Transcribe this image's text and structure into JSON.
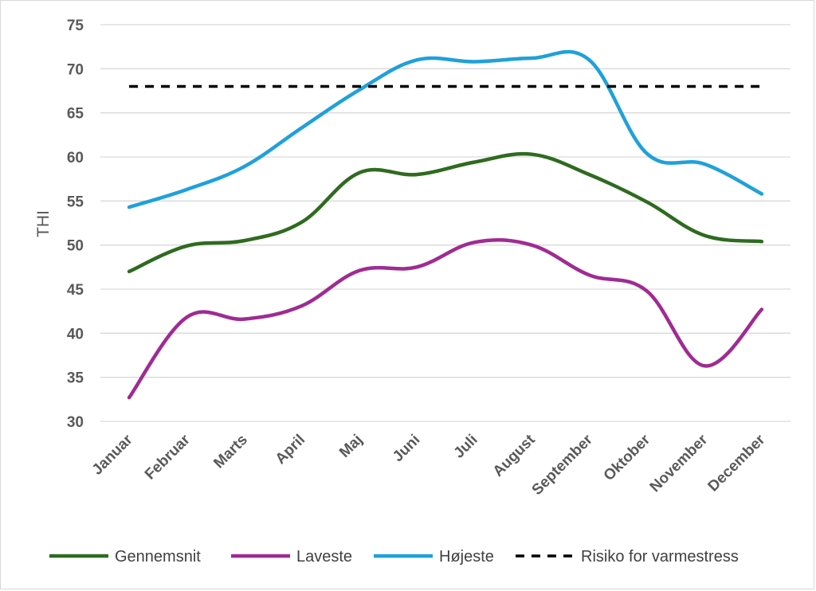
{
  "chart_data": {
    "type": "line",
    "title": "",
    "xlabel": "",
    "ylabel": "THI",
    "ylim": [
      30,
      75
    ],
    "y_ticks": [
      30,
      35,
      40,
      45,
      50,
      55,
      60,
      65,
      70,
      75
    ],
    "grid": "horizontal",
    "legend_position": "bottom",
    "categories": [
      "Januar",
      "Februar",
      "Marts",
      "April",
      "Maj",
      "Juni",
      "Juli",
      "August",
      "September",
      "Oktober",
      "November",
      "December"
    ],
    "series": [
      {
        "name": "Gennemsnit",
        "color": "#2e6b1f",
        "style": "solid",
        "smooth": true,
        "values": [
          47.0,
          49.9,
          50.5,
          52.6,
          58.2,
          58.0,
          59.4,
          60.3,
          58.0,
          54.9,
          51.1,
          50.4
        ]
      },
      {
        "name": "Laveste",
        "color": "#a02b93",
        "style": "solid",
        "smooth": true,
        "values": [
          32.7,
          41.8,
          41.6,
          43.1,
          47.1,
          47.5,
          50.3,
          50.0,
          46.6,
          44.8,
          36.3,
          42.7
        ]
      },
      {
        "name": "Højeste",
        "color": "#1fa1d9",
        "style": "solid",
        "smooth": true,
        "values": [
          54.3,
          56.3,
          58.9,
          63.3,
          67.6,
          71.0,
          70.8,
          71.2,
          71.0,
          60.4,
          59.2,
          55.8
        ]
      },
      {
        "name": "Risiko for varmestress",
        "color": "#000000",
        "style": "dashed",
        "smooth": false,
        "values": [
          68,
          68,
          68,
          68,
          68,
          68,
          68,
          68,
          68,
          68,
          68,
          68
        ]
      }
    ]
  }
}
